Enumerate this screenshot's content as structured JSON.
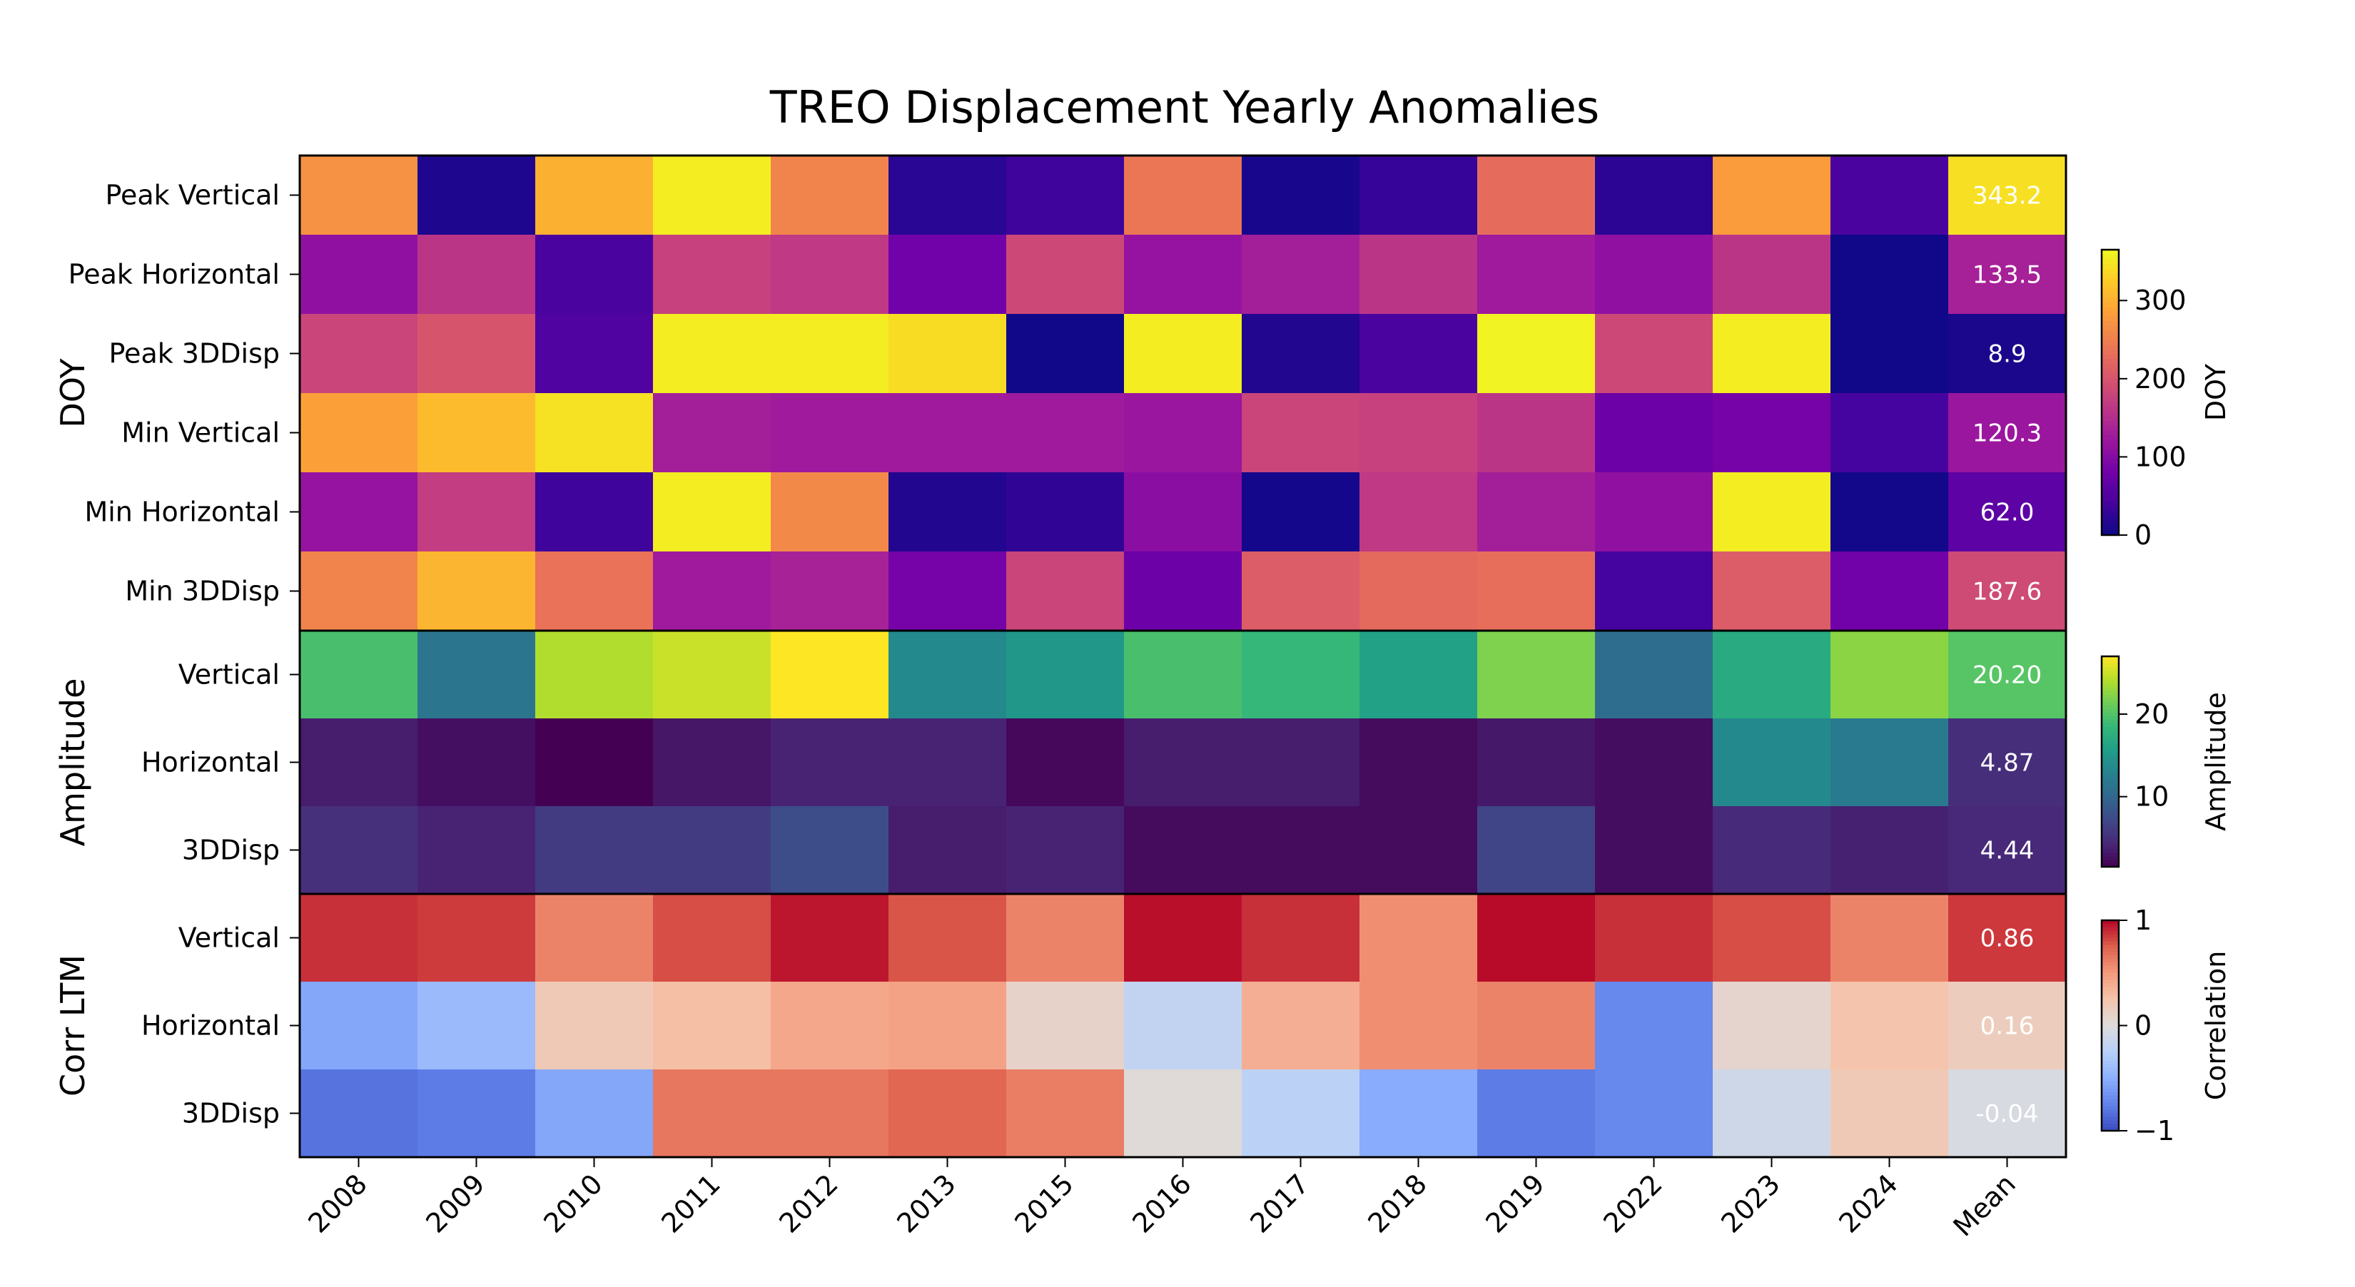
{
  "chart_data": {
    "type": "heatmap",
    "title": "TREO Displacement Yearly Anomalies",
    "columns": [
      "2008",
      "2009",
      "2010",
      "2011",
      "2012",
      "2013",
      "2015",
      "2016",
      "2017",
      "2018",
      "2019",
      "2022",
      "2023",
      "2024",
      "Mean"
    ],
    "panels": [
      {
        "group_label": "DOY",
        "colormap": "plasma",
        "colorbar": {
          "label": "DOY",
          "min": 0,
          "max": 365,
          "ticks": [
            0,
            100,
            200,
            300
          ]
        },
        "rows": [
          {
            "label": "Peak Vertical",
            "values": [
              270,
              12,
              300,
              355,
              255,
              20,
              35,
              240,
              8,
              30,
              228,
              22,
              280,
              45,
              343.2
            ],
            "mean_label": "343.2"
          },
          {
            "label": "Peak Horizontal",
            "values": [
              110,
              160,
              45,
              175,
              165,
              80,
              185,
              115,
              130,
              160,
              125,
              110,
              160,
              2,
              133.5
            ],
            "mean_label": "133.5"
          },
          {
            "label": "Peak 3DDisp",
            "values": [
              180,
              200,
              50,
              355,
              355,
              340,
              2,
              355,
              15,
              45,
              360,
              185,
              355,
              2,
              8.9
            ],
            "mean_label": "8.9"
          },
          {
            "label": "Min Vertical",
            "values": [
              285,
              310,
              345,
              130,
              125,
              125,
              125,
              120,
              180,
              175,
              160,
              75,
              85,
              40,
              120.3
            ],
            "mean_label": "120.3"
          },
          {
            "label": "Min Horizontal",
            "values": [
              115,
              170,
              35,
              355,
              260,
              15,
              25,
              105,
              6,
              165,
              130,
              110,
              355,
              4,
              62.0
            ],
            "mean_label": "62.0"
          },
          {
            "label": "Min 3DDisp",
            "values": [
              255,
              305,
              235,
              125,
              135,
              85,
              180,
              75,
              210,
              225,
              230,
              40,
              210,
              80,
              187.6
            ],
            "mean_label": "187.6"
          }
        ]
      },
      {
        "group_label": "Amplitude",
        "colormap": "viridis",
        "colorbar": {
          "label": "Amplitude",
          "min": 1.5,
          "max": 27,
          "ticks": [
            10,
            20
          ]
        },
        "rows": [
          {
            "label": "Vertical",
            "values": [
              19.5,
              11.5,
              24,
              25,
              27,
              13.5,
              15,
              19.5,
              18.5,
              16,
              22,
              10.5,
              17,
              22.5,
              20.2
            ],
            "mean_label": "20.20"
          },
          {
            "label": "Horizontal",
            "values": [
              3.5,
              2.5,
              1.5,
              3,
              4,
              4,
              2,
              3.5,
              3.5,
              2.2,
              3.2,
              2.4,
              13.5,
              12,
              4.87
            ],
            "mean_label": "4.87"
          },
          {
            "label": "3DDisp",
            "values": [
              5,
              4,
              6,
              6,
              7.5,
              3.5,
              4,
              2.2,
              2.2,
              2.2,
              6.8,
              2.4,
              4.5,
              3.8,
              4.44
            ],
            "mean_label": "4.44"
          }
        ]
      },
      {
        "group_label": "Corr LTM",
        "colormap": "coolwarm",
        "colorbar": {
          "label": "Correlation",
          "min": -1,
          "max": 1,
          "ticks": [
            -1,
            0,
            1
          ]
        },
        "rows": [
          {
            "label": "Vertical",
            "values": [
              0.88,
              0.85,
              0.6,
              0.8,
              0.95,
              0.78,
              0.6,
              0.97,
              0.88,
              0.55,
              0.98,
              0.88,
              0.8,
              0.6,
              0.86
            ],
            "mean_label": "0.86"
          },
          {
            "label": "Horizontal",
            "values": [
              -0.55,
              -0.42,
              0.2,
              0.28,
              0.42,
              0.45,
              0.1,
              -0.18,
              0.38,
              0.55,
              0.6,
              -0.72,
              0.08,
              0.25,
              0.16
            ],
            "mean_label": "0.16"
          },
          {
            "label": "3DDisp",
            "values": [
              -0.82,
              -0.78,
              -0.55,
              0.65,
              0.65,
              0.72,
              0.62,
              0.02,
              -0.22,
              -0.52,
              -0.78,
              -0.72,
              -0.1,
              0.2,
              -0.04
            ],
            "mean_label": "-0.04"
          }
        ]
      }
    ]
  }
}
